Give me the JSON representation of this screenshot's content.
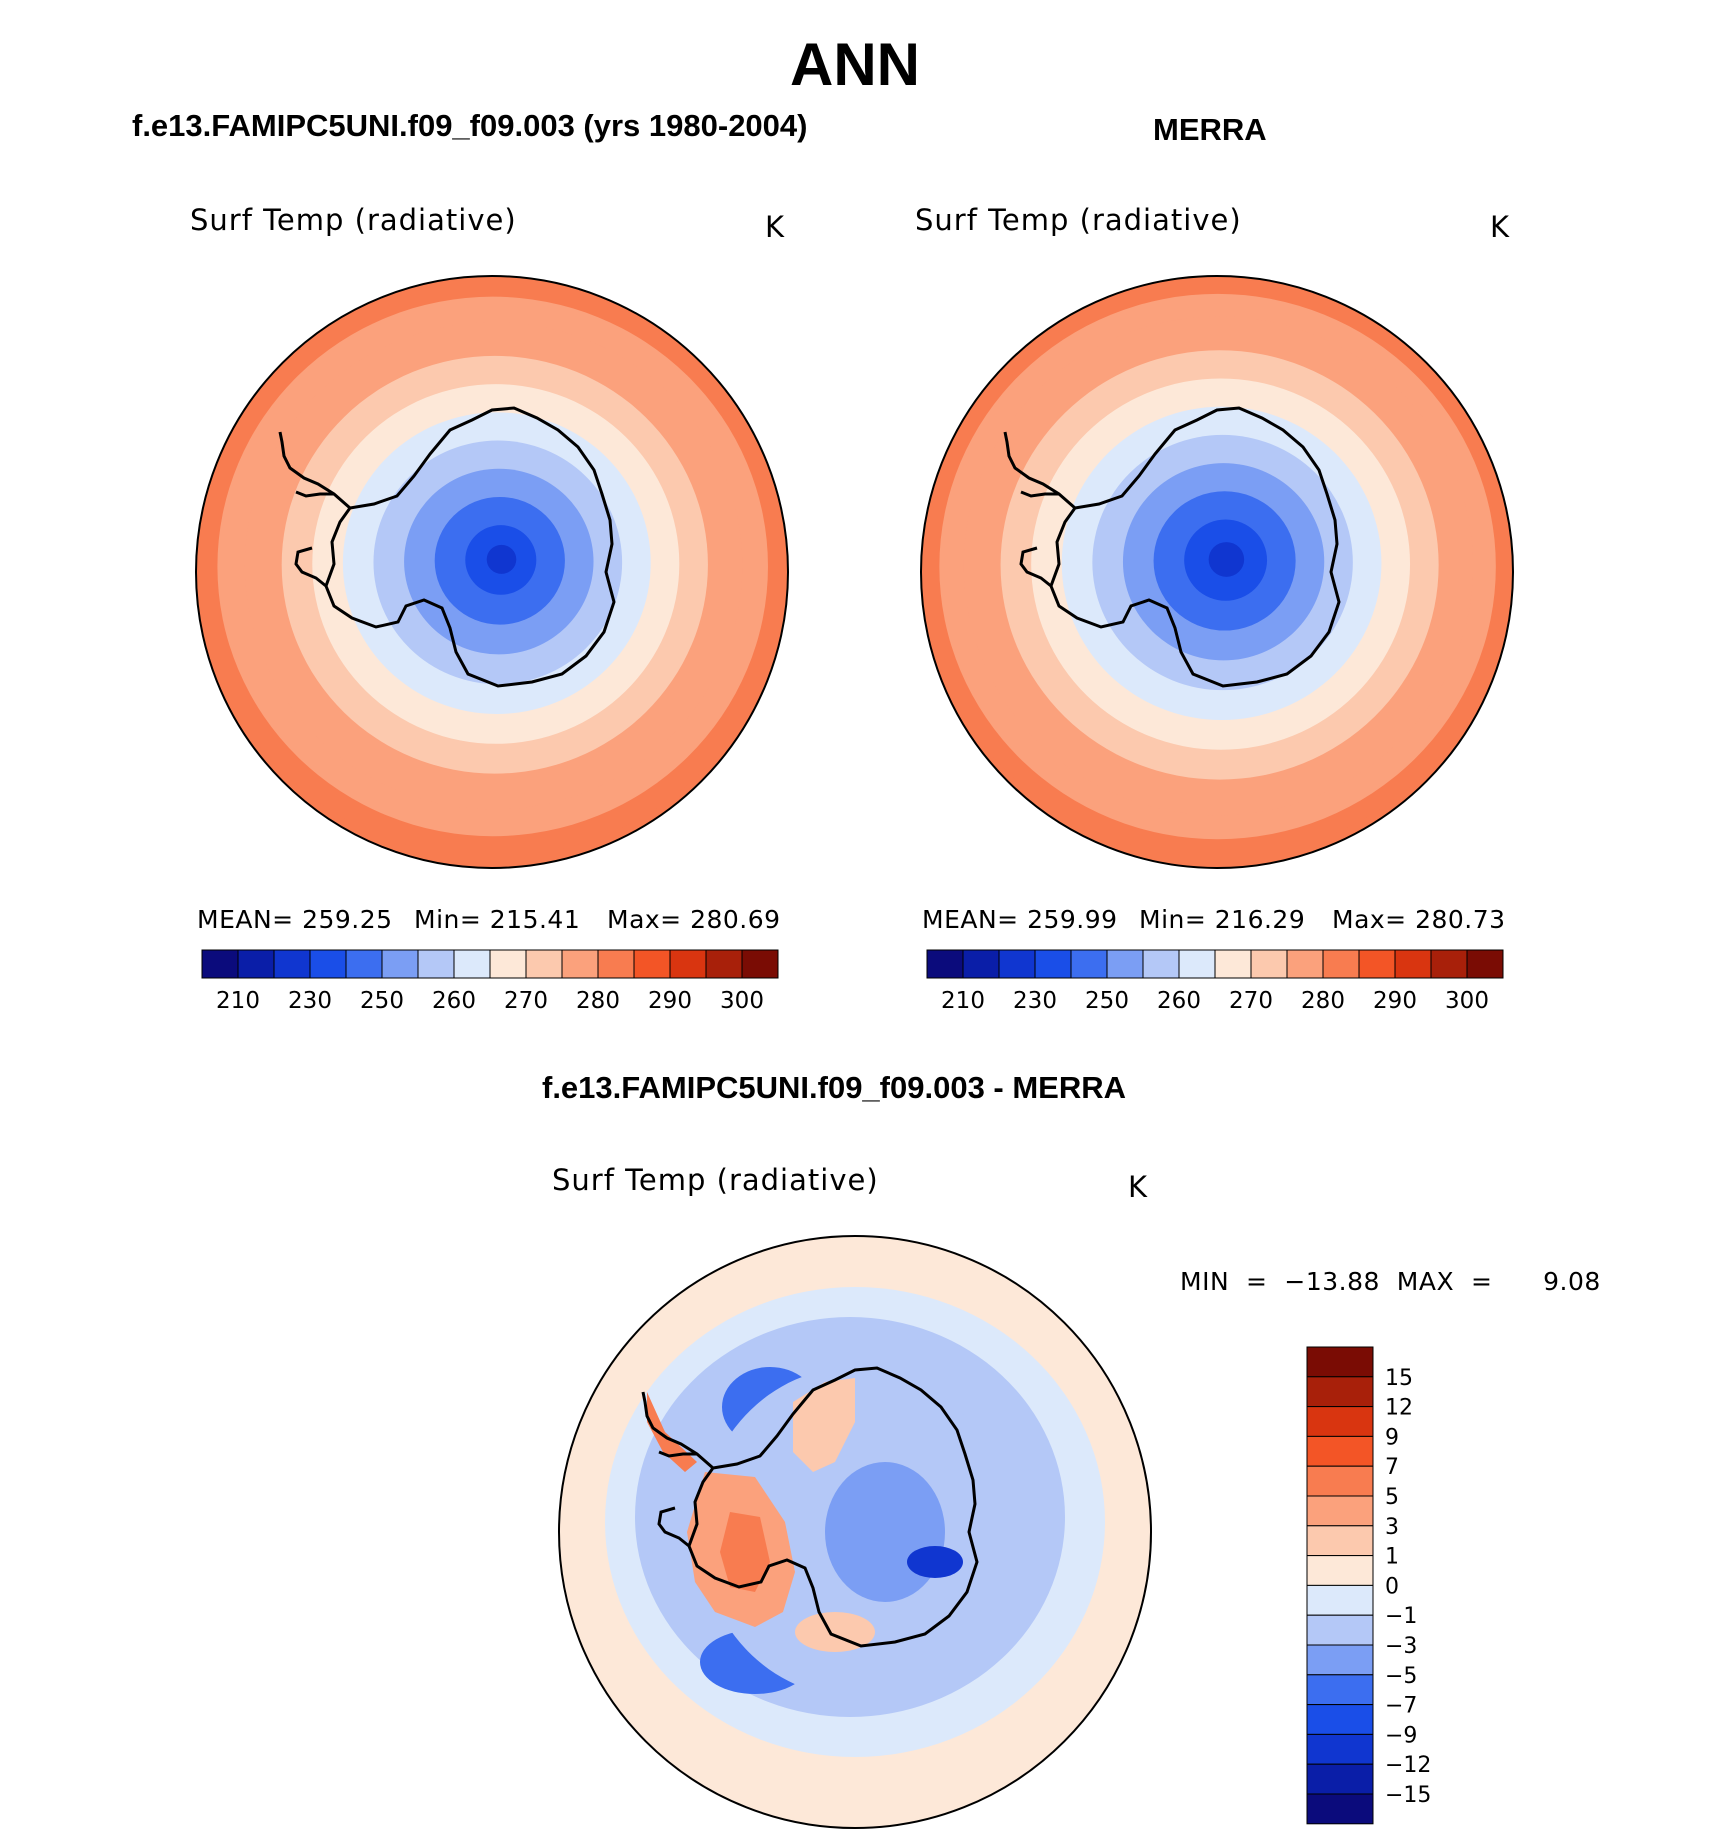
{
  "page_title": "ANN",
  "panels": {
    "left": {
      "title": "f.e13.FAMIPC5UNI.f09_f09.003 (yrs 1980-2004)",
      "variable": "Surf Temp (radiative)",
      "units": "K",
      "stats_mean": "MEAN= 259.25",
      "stats_min": "Min= 215.41",
      "stats_max": "Max= 280.69"
    },
    "right": {
      "title": "MERRA",
      "variable": "Surf Temp (radiative)",
      "units": "K",
      "stats_mean": "MEAN= 259.99",
      "stats_min": "Min= 216.29",
      "stats_max": "Max= 280.73"
    },
    "diff": {
      "title": "f.e13.FAMIPC5UNI.f09_f09.003 - MERRA",
      "variable": "Surf Temp (radiative)",
      "units": "K",
      "minmax": "MIN  =  −13.88  MAX  =      9.08"
    }
  },
  "colors": {
    "abs_scale": [
      "#0b0b7c",
      "#0a1ea8",
      "#1036d0",
      "#1a4ee8",
      "#3c6ef0",
      "#7b9ef4",
      "#b4c8f7",
      "#dce9fb",
      "#fde8d8",
      "#fcc9ae",
      "#fba17c",
      "#f87c50",
      "#f35526",
      "#d93510",
      "#a8200a",
      "#7a0c04"
    ],
    "diff_scale": [
      "#0b0b7c",
      "#0a1ea8",
      "#1036d0",
      "#1a4ee8",
      "#3c6ef0",
      "#7b9ef4",
      "#b4c8f7",
      "#dce9fb",
      "#fde8d8",
      "#fcc9ae",
      "#fba17c",
      "#f87c50",
      "#f35526",
      "#d93510",
      "#a8200a",
      "#7a0c04"
    ]
  },
  "chart_data": [
    {
      "type": "heatmap",
      "projection": "south-polar stereographic",
      "title": "f.e13.FAMIPC5UNI.f09_f09.003 (yrs 1980-2004)",
      "variable": "Surf Temp (radiative)",
      "units": "K",
      "mean": 259.25,
      "min": 215.41,
      "max": 280.69,
      "colorbar_ticks": [
        "210",
        "230",
        "250",
        "260",
        "270",
        "280",
        "290",
        "300"
      ],
      "field_levels": [
        0.05,
        0.12,
        0.22,
        0.32,
        0.42,
        0.52,
        0.62,
        0.72,
        0.84,
        0.93,
        1.0
      ],
      "field_color_idx": [
        2,
        3,
        4,
        5,
        6,
        7,
        8,
        9,
        10,
        10,
        11
      ]
    },
    {
      "type": "heatmap",
      "projection": "south-polar stereographic",
      "title": "MERRA",
      "variable": "Surf Temp (radiative)",
      "units": "K",
      "mean": 259.99,
      "min": 216.29,
      "max": 280.73,
      "colorbar_ticks": [
        "210",
        "230",
        "250",
        "260",
        "270",
        "280",
        "290",
        "300"
      ],
      "field_levels": [
        0.06,
        0.14,
        0.24,
        0.34,
        0.44,
        0.54,
        0.64,
        0.74,
        0.86,
        0.94,
        1.0
      ],
      "field_color_idx": [
        2,
        3,
        4,
        5,
        6,
        7,
        8,
        9,
        10,
        10,
        11
      ]
    },
    {
      "type": "heatmap",
      "projection": "south-polar stereographic",
      "title": "f.e13.FAMIPC5UNI.f09_f09.003 - MERRA",
      "variable": "Surf Temp (radiative)",
      "units": "K",
      "min": -13.88,
      "max": 9.08,
      "colorbar_ticks": [
        "15",
        "12",
        "9",
        "7",
        "5",
        "3",
        "1",
        "0",
        "−1",
        "−3",
        "−5",
        "−7",
        "−9",
        "−12",
        "−15"
      ]
    }
  ]
}
